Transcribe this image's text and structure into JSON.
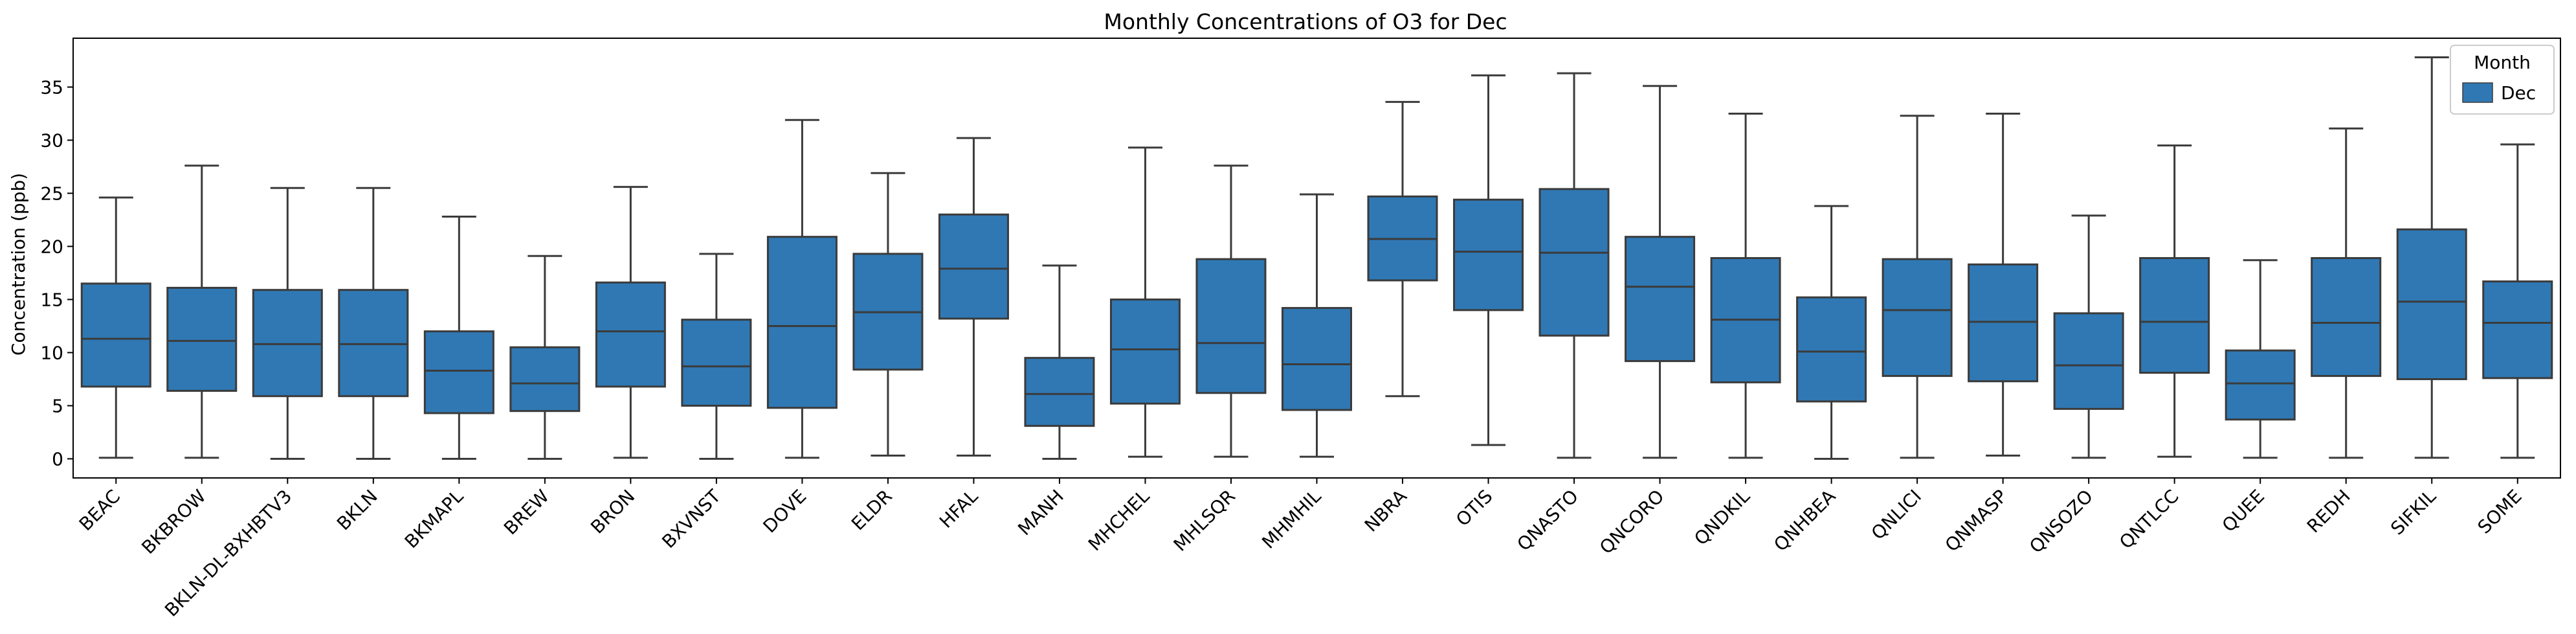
{
  "chart_data": {
    "type": "box",
    "title": "Monthly Concentrations of O3 for Dec",
    "xlabel": "",
    "ylabel": "Concentration (ppb)",
    "ylim": [
      -1.8,
      39.6
    ],
    "yticks": [
      0,
      5,
      10,
      15,
      20,
      25,
      30,
      35
    ],
    "legend": {
      "title": "Month",
      "entries": [
        "Dec"
      ],
      "placement": "top-right"
    },
    "colors": {
      "box": "#2f78b4",
      "line": "#3b3b3b"
    },
    "categories": [
      "BEAC",
      "BKBROW",
      "BKLN-DL-BXHBTV3",
      "BKLN",
      "BKMAPL",
      "BREW",
      "BRON",
      "BXVNST",
      "DOVE",
      "ELDR",
      "HFAL",
      "MANH",
      "MHCHEL",
      "MHLSQR",
      "MHMHIL",
      "NBRA",
      "OTIS",
      "QNASTO",
      "QNCORO",
      "QNDKIL",
      "QNHBEA",
      "QNLICI",
      "QNMASP",
      "QNSOZO",
      "QNTLCC",
      "QUEE",
      "REDH",
      "SIFKIL",
      "SOME"
    ],
    "series": [
      {
        "name": "Dec",
        "boxes": [
          {
            "min": 0.1,
            "q1": 6.8,
            "median": 11.3,
            "q3": 16.5,
            "max": 24.6
          },
          {
            "min": 0.1,
            "q1": 6.4,
            "median": 11.1,
            "q3": 16.1,
            "max": 27.6
          },
          {
            "min": 0.0,
            "q1": 5.9,
            "median": 10.8,
            "q3": 15.9,
            "max": 25.5
          },
          {
            "min": 0.0,
            "q1": 5.9,
            "median": 10.8,
            "q3": 15.9,
            "max": 25.5
          },
          {
            "min": 0.0,
            "q1": 4.3,
            "median": 8.3,
            "q3": 12.0,
            "max": 22.8
          },
          {
            "min": 0.0,
            "q1": 4.5,
            "median": 7.1,
            "q3": 10.5,
            "max": 19.1
          },
          {
            "min": 0.1,
            "q1": 6.8,
            "median": 12.0,
            "q3": 16.6,
            "max": 25.6
          },
          {
            "min": 0.0,
            "q1": 5.0,
            "median": 8.7,
            "q3": 13.1,
            "max": 19.3
          },
          {
            "min": 0.1,
            "q1": 4.8,
            "median": 12.5,
            "q3": 20.9,
            "max": 31.9
          },
          {
            "min": 0.3,
            "q1": 8.4,
            "median": 13.8,
            "q3": 19.3,
            "max": 26.9
          },
          {
            "min": 0.3,
            "q1": 13.2,
            "median": 17.9,
            "q3": 23.0,
            "max": 30.2
          },
          {
            "min": 0.0,
            "q1": 3.1,
            "median": 6.1,
            "q3": 9.5,
            "max": 18.2
          },
          {
            "min": 0.2,
            "q1": 5.2,
            "median": 10.3,
            "q3": 15.0,
            "max": 29.3
          },
          {
            "min": 0.2,
            "q1": 6.2,
            "median": 10.9,
            "q3": 18.8,
            "max": 27.6
          },
          {
            "min": 0.2,
            "q1": 4.6,
            "median": 8.9,
            "q3": 14.2,
            "max": 24.9
          },
          {
            "min": 5.9,
            "q1": 16.8,
            "median": 20.7,
            "q3": 24.7,
            "max": 33.6
          },
          {
            "min": 1.3,
            "q1": 14.0,
            "median": 19.5,
            "q3": 24.4,
            "max": 36.1
          },
          {
            "min": 0.1,
            "q1": 11.6,
            "median": 19.4,
            "q3": 25.4,
            "max": 36.3
          },
          {
            "min": 0.1,
            "q1": 9.2,
            "median": 16.2,
            "q3": 20.9,
            "max": 35.1
          },
          {
            "min": 0.1,
            "q1": 7.2,
            "median": 13.1,
            "q3": 18.9,
            "max": 32.5
          },
          {
            "min": 0.0,
            "q1": 5.4,
            "median": 10.1,
            "q3": 15.2,
            "max": 23.8
          },
          {
            "min": 0.1,
            "q1": 7.8,
            "median": 14.0,
            "q3": 18.8,
            "max": 32.3
          },
          {
            "min": 0.3,
            "q1": 7.3,
            "median": 12.9,
            "q3": 18.3,
            "max": 32.5
          },
          {
            "min": 0.1,
            "q1": 4.7,
            "median": 8.8,
            "q3": 13.7,
            "max": 22.9
          },
          {
            "min": 0.2,
            "q1": 8.1,
            "median": 12.9,
            "q3": 18.9,
            "max": 29.5
          },
          {
            "min": 0.1,
            "q1": 3.7,
            "median": 7.1,
            "q3": 10.2,
            "max": 18.7
          },
          {
            "min": 0.1,
            "q1": 7.8,
            "median": 12.8,
            "q3": 18.9,
            "max": 31.1
          },
          {
            "min": 0.1,
            "q1": 7.5,
            "median": 14.8,
            "q3": 21.6,
            "max": 37.8
          },
          {
            "min": 0.1,
            "q1": 7.6,
            "median": 12.8,
            "q3": 16.7,
            "max": 29.6
          }
        ]
      }
    ]
  }
}
